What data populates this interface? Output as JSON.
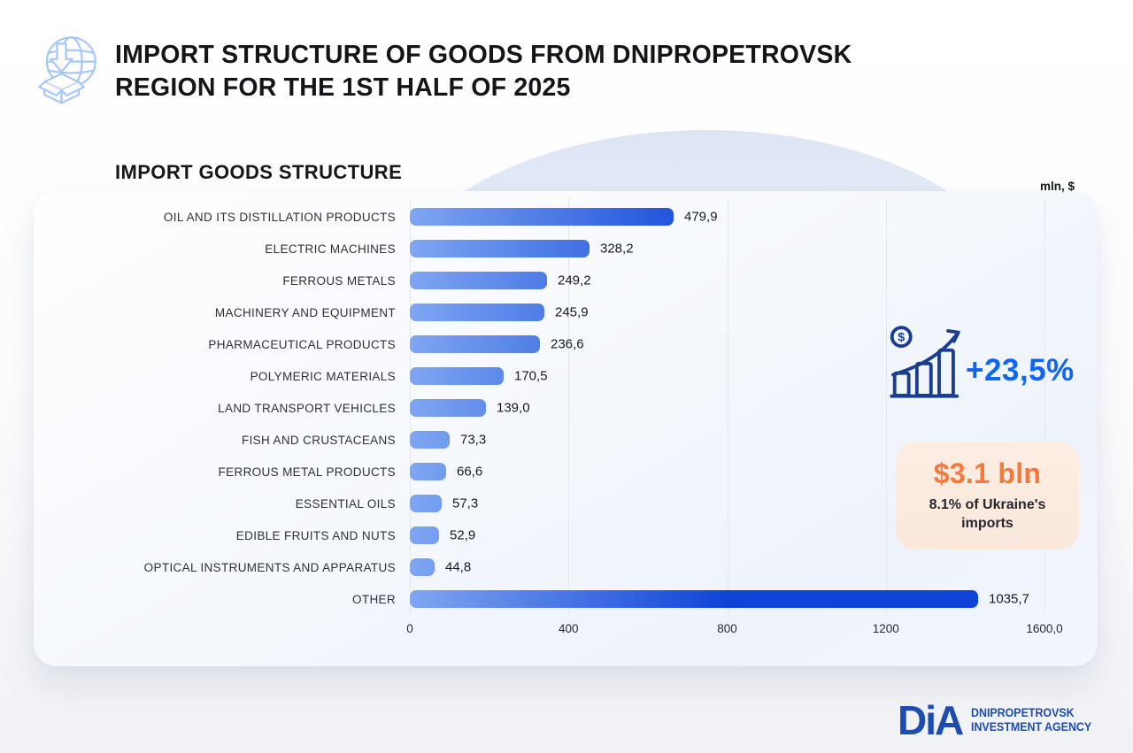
{
  "header": {
    "title_line1": "IMPORT STRUCTURE OF GOODS FROM DNIPROPETROVSK",
    "title_line2": "REGION FOR THE 1ST HALF OF 2025",
    "icon": "globe-import-icon"
  },
  "chart_data": {
    "type": "bar",
    "orientation": "horizontal",
    "title": "IMPORT GOODS STRUCTURE",
    "unit": "mln, $",
    "categories": [
      "OIL AND ITS DISTILLATION PRODUCTS",
      "ELECTRIC MACHINES",
      "FERROUS METALS",
      "MACHINERY AND EQUIPMENT",
      "PHARMACEUTICAL PRODUCTS",
      "POLYMERIC MATERIALS",
      "LAND TRANSPORT VEHICLES",
      "FISH AND CRUSTACEANS",
      "FERROUS METAL PRODUCTS",
      "ESSENTIAL OILS",
      "EDIBLE FRUITS AND NUTS",
      "OPTICAL INSTRUMENTS AND APPARATUS",
      "OTHER"
    ],
    "values": [
      479.9,
      328.2,
      249.2,
      245.9,
      236.6,
      170.5,
      139.0,
      73.3,
      66.6,
      57.3,
      52.9,
      44.8,
      1035.7
    ],
    "value_labels": [
      "479,9",
      "328,2",
      "249,2",
      "245,9",
      "236,6",
      "170,5",
      "139,0",
      "73,3",
      "66,6",
      "57,3",
      "52,9",
      "44,8",
      "1035,7"
    ],
    "x_ticks": [
      "0",
      "400",
      "800",
      "1200",
      "1600,0"
    ],
    "xlim": [
      0,
      1600
    ],
    "grid": true,
    "legend": false,
    "bar_gradient": [
      "#7EA6F2",
      "#0E44D6"
    ]
  },
  "stats": {
    "growth": {
      "label": "+23,5%",
      "color": "#0F66F4",
      "icon": "dollar-growth-chart-icon"
    },
    "total_card": {
      "amount": "$3.1 bln",
      "amount_color": "#F5793C",
      "caption": "8.1% of Ukraine's imports",
      "bg_color": "#FBEADE"
    }
  },
  "brand": {
    "logo": "DiA",
    "name_line1": "DNIPROPETROVSK",
    "name_line2": "INVESTMENT AGENCY",
    "color": "#1C4CB2"
  }
}
